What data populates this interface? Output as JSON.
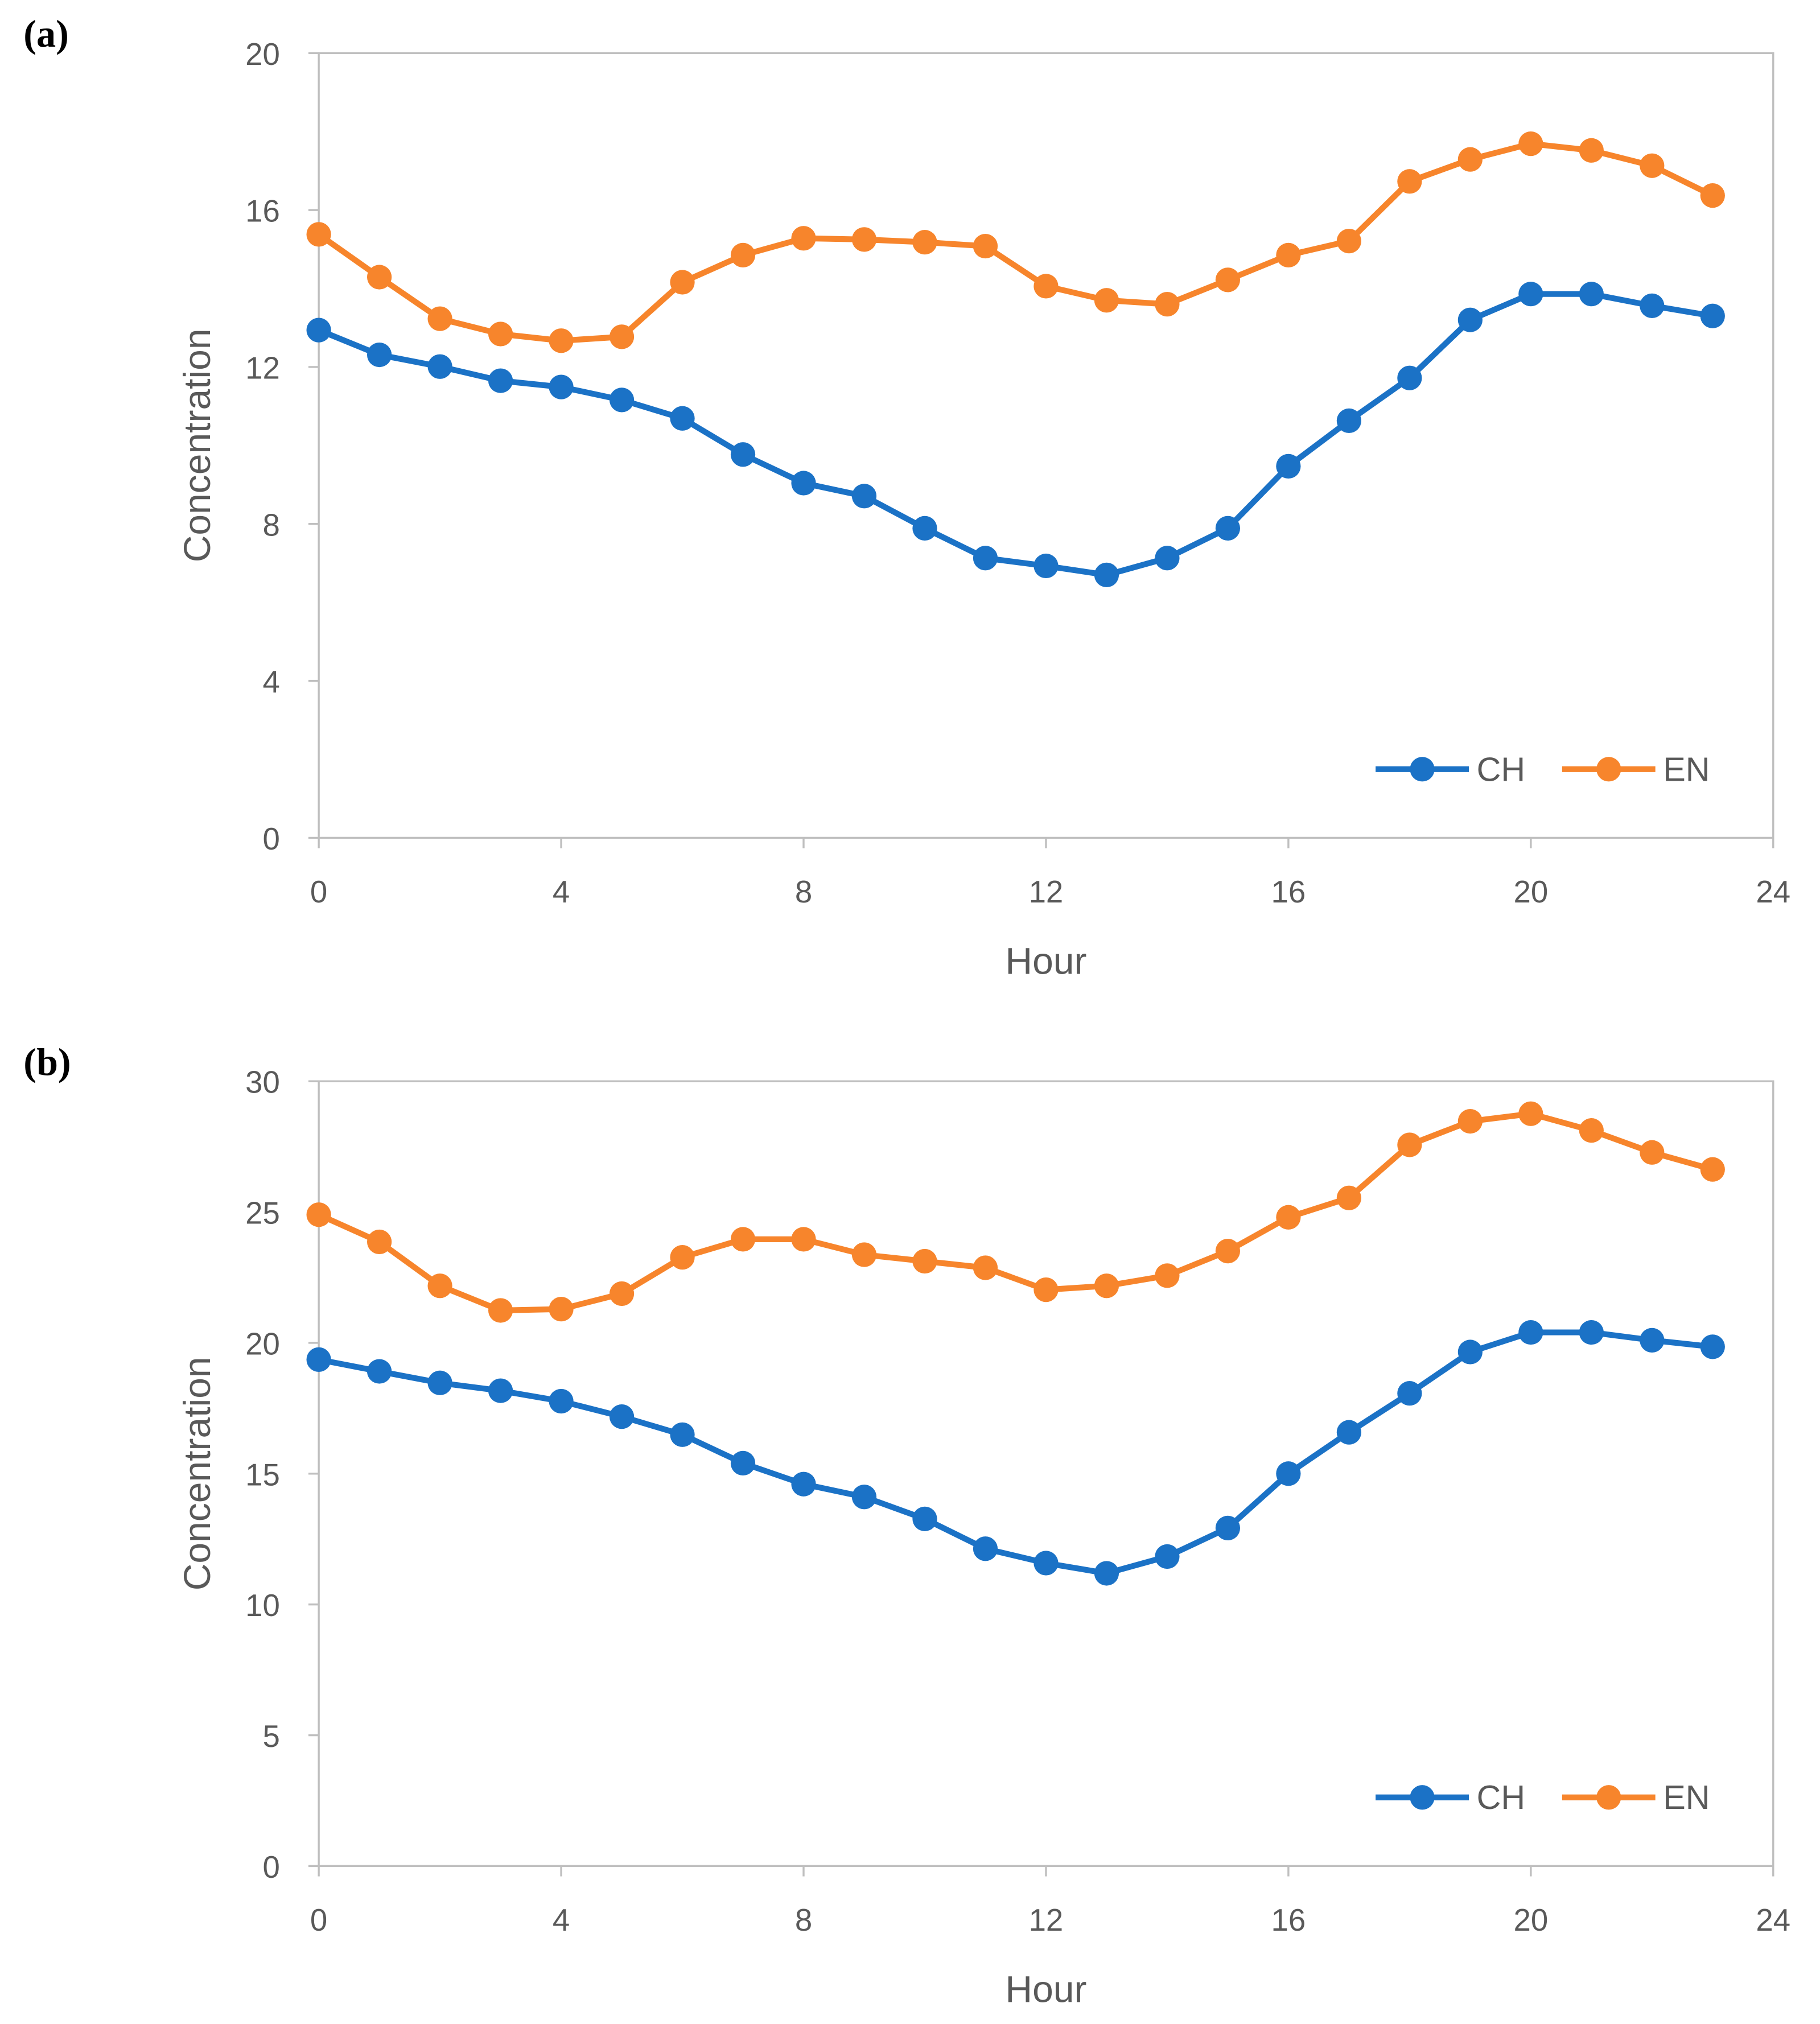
{
  "chart_data": [
    {
      "type": "line",
      "panel_label": "(a)",
      "panel_letter": "a",
      "xlabel": "Hour",
      "ylabel": "Concentration",
      "xlim": [
        0,
        24
      ],
      "ylim": [
        0,
        20
      ],
      "xticks": [
        0,
        4,
        8,
        12,
        16,
        20,
        24
      ],
      "yticks": [
        0,
        4,
        8,
        12,
        16,
        20
      ],
      "grid": false,
      "legend_position": "bottom-right",
      "x": [
        0,
        1,
        2,
        3,
        4,
        5,
        6,
        7,
        8,
        9,
        10,
        11,
        12,
        13,
        14,
        15,
        16,
        17,
        18,
        19,
        20,
        21,
        22,
        23
      ],
      "series": [
        {
          "name": "CH",
          "color": "#1b72c6",
          "values": [
            12.94,
            12.31,
            12.01,
            11.65,
            11.49,
            11.16,
            10.69,
            9.77,
            9.04,
            8.71,
            7.89,
            7.13,
            6.93,
            6.7,
            7.13,
            7.89,
            9.47,
            10.63,
            11.72,
            13.2,
            13.86,
            13.86,
            13.56,
            13.3
          ]
        },
        {
          "name": "EN",
          "color": "#f7852c",
          "values": [
            15.38,
            14.29,
            13.23,
            12.84,
            12.67,
            12.77,
            14.16,
            14.85,
            15.28,
            15.25,
            15.18,
            15.08,
            14.06,
            13.7,
            13.6,
            14.22,
            14.85,
            15.21,
            16.73,
            17.29,
            17.69,
            17.52,
            17.13,
            16.37
          ]
        }
      ]
    },
    {
      "type": "line",
      "panel_label": "(b)",
      "panel_letter": "b",
      "xlabel": "Hour",
      "ylabel": "Concentration",
      "xlim": [
        0,
        24
      ],
      "ylim": [
        0,
        30
      ],
      "xticks": [
        0,
        4,
        8,
        12,
        16,
        20,
        24
      ],
      "yticks": [
        0,
        5,
        10,
        15,
        20,
        25,
        30
      ],
      "grid": false,
      "legend_position": "bottom-right",
      "x": [
        0,
        1,
        2,
        3,
        4,
        5,
        6,
        7,
        8,
        9,
        10,
        11,
        12,
        13,
        14,
        15,
        16,
        17,
        18,
        19,
        20,
        21,
        22,
        23
      ],
      "series": [
        {
          "name": "CH",
          "color": "#1b72c6",
          "values": [
            19.36,
            18.91,
            18.47,
            18.17,
            17.77,
            17.18,
            16.49,
            15.4,
            14.6,
            14.11,
            13.27,
            12.13,
            11.58,
            11.19,
            11.83,
            12.92,
            15.0,
            16.58,
            18.07,
            19.65,
            20.4,
            20.4,
            20.1,
            19.85
          ]
        },
        {
          "name": "EN",
          "color": "#f7852c",
          "values": [
            24.9,
            23.86,
            22.18,
            21.24,
            21.29,
            21.88,
            23.27,
            23.96,
            23.96,
            23.37,
            23.12,
            22.87,
            22.03,
            22.18,
            22.57,
            23.51,
            24.8,
            25.54,
            27.57,
            28.47,
            28.76,
            28.12,
            27.28,
            26.63
          ]
        }
      ]
    }
  ]
}
